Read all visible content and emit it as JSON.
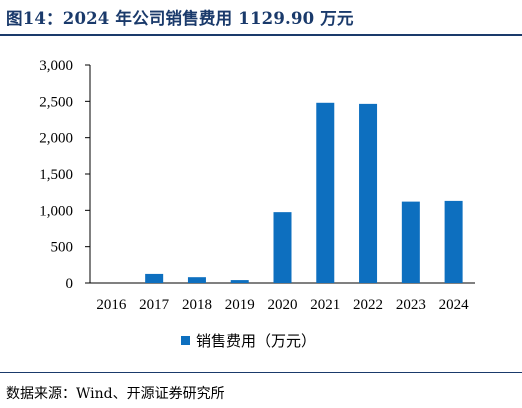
{
  "header": {
    "title": "图14：2024 年公司销售费用 1129.90 万元"
  },
  "footer": {
    "source": "数据来源：Wind、开源证券研究所"
  },
  "colors": {
    "bar": "#0d6fbf",
    "title": "#1a3a6b",
    "axis": "#000000"
  },
  "chart_data": {
    "type": "bar",
    "categories": [
      "2016",
      "2017",
      "2018",
      "2019",
      "2020",
      "2021",
      "2022",
      "2023",
      "2024"
    ],
    "series": [
      {
        "name": "销售费用（万元）",
        "values": [
          0,
          125,
          80,
          40,
          975,
          2480,
          2465,
          1120,
          1129.9
        ]
      }
    ],
    "yticks": [
      "0",
      "500",
      "1,000",
      "1,500",
      "2,000",
      "2,500",
      "3,000"
    ],
    "ylim": [
      0,
      3000
    ],
    "legend_position": "bottom",
    "grid": false
  }
}
